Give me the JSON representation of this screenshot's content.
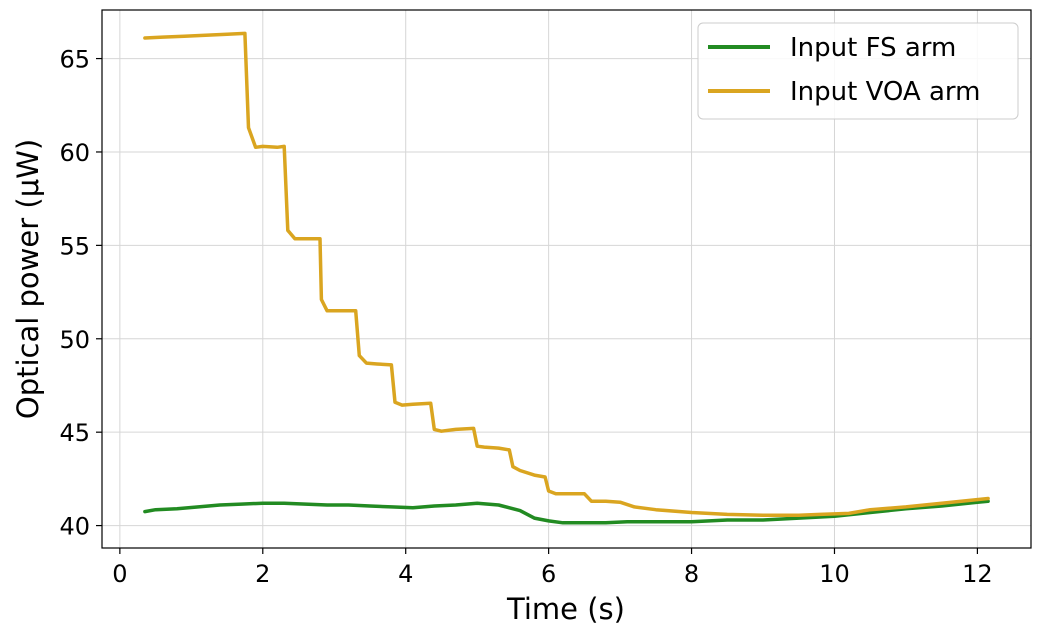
{
  "chart_data": {
    "type": "line",
    "xlabel": "Time (s)",
    "ylabel": "Optical power (μW)",
    "xlim": [
      -0.25,
      12.75
    ],
    "ylim": [
      38.8,
      67.6
    ],
    "xticks": [
      0,
      2,
      4,
      6,
      8,
      10,
      12
    ],
    "yticks": [
      40,
      45,
      50,
      55,
      60,
      65
    ],
    "grid": true,
    "legend_position": "top-right",
    "series": [
      {
        "name": "Input FS arm",
        "color": "#228b22",
        "x": [
          0.35,
          0.5,
          0.8,
          1.1,
          1.4,
          1.7,
          2.0,
          2.3,
          2.6,
          2.9,
          3.2,
          3.5,
          3.8,
          4.1,
          4.4,
          4.7,
          5.0,
          5.3,
          5.6,
          5.8,
          6.0,
          6.2,
          6.5,
          6.8,
          7.1,
          7.5,
          8.0,
          8.5,
          9.0,
          9.5,
          10.0,
          10.5,
          11.0,
          11.5,
          12.0,
          12.15
        ],
        "y": [
          40.75,
          40.85,
          40.9,
          41.0,
          41.1,
          41.15,
          41.2,
          41.2,
          41.15,
          41.1,
          41.1,
          41.05,
          41.0,
          40.95,
          41.05,
          41.1,
          41.2,
          41.1,
          40.8,
          40.4,
          40.25,
          40.15,
          40.15,
          40.15,
          40.2,
          40.2,
          40.2,
          40.3,
          40.3,
          40.4,
          40.5,
          40.7,
          40.9,
          41.05,
          41.25,
          41.3
        ]
      },
      {
        "name": "Input VOA arm",
        "color": "#daa520",
        "x": [
          0.35,
          0.6,
          0.9,
          1.2,
          1.5,
          1.75,
          1.8,
          1.9,
          2.0,
          2.2,
          2.3,
          2.35,
          2.45,
          2.6,
          2.8,
          2.82,
          2.9,
          3.1,
          3.3,
          3.35,
          3.45,
          3.6,
          3.8,
          3.85,
          3.95,
          4.1,
          4.35,
          4.4,
          4.5,
          4.7,
          4.95,
          5.0,
          5.1,
          5.3,
          5.45,
          5.5,
          5.6,
          5.8,
          5.95,
          6.0,
          6.1,
          6.3,
          6.5,
          6.6,
          6.8,
          7.0,
          7.2,
          7.5,
          8.0,
          8.5,
          9.0,
          9.5,
          9.8,
          10.2,
          10.5,
          11.0,
          11.5,
          12.15
        ],
        "y": [
          66.1,
          66.15,
          66.2,
          66.25,
          66.3,
          66.35,
          61.3,
          60.25,
          60.3,
          60.25,
          60.3,
          55.8,
          55.35,
          55.35,
          55.35,
          52.1,
          51.5,
          51.5,
          51.5,
          49.1,
          48.7,
          48.65,
          48.6,
          46.6,
          46.45,
          46.5,
          46.55,
          45.15,
          45.05,
          45.15,
          45.2,
          44.25,
          44.2,
          44.15,
          44.05,
          43.15,
          42.95,
          42.7,
          42.6,
          41.85,
          41.7,
          41.7,
          41.7,
          41.3,
          41.3,
          41.25,
          41.0,
          40.85,
          40.7,
          40.6,
          40.55,
          40.55,
          40.6,
          40.65,
          40.85,
          41.0,
          41.2,
          41.45
        ]
      }
    ]
  }
}
